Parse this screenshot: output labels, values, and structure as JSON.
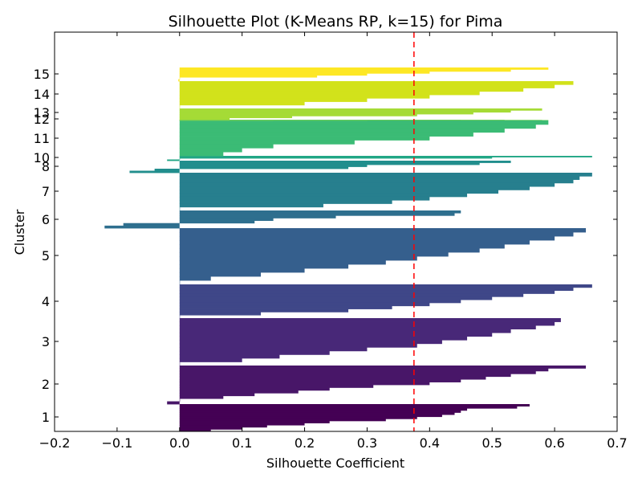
{
  "chart_data": {
    "type": "bar",
    "orientation": "horizontal",
    "title": "Silhouette Plot (K-Means RP, k=15) for Pima",
    "xlabel": "Silhouette Coefficient",
    "ylabel": "Cluster",
    "xlim": [
      -0.2,
      0.7
    ],
    "x_ticks": [
      "−0.2",
      "−0.1",
      "0.0",
      "0.1",
      "0.2",
      "0.3",
      "0.4",
      "0.5",
      "0.6",
      "0.7"
    ],
    "y_tick_labels": [
      "1",
      "2",
      "3",
      "4",
      "5",
      "6",
      "7",
      "8",
      "10",
      "11",
      "12",
      "13",
      "14",
      "15"
    ],
    "average_silhouette": 0.375,
    "average_line_color": "#ff0000",
    "grid": false,
    "clusters": [
      {
        "label": "1",
        "color": "#440154",
        "values": [
          0.56,
          0.54,
          0.46,
          0.45,
          0.44,
          0.42,
          0.38,
          0.33,
          0.24,
          0.2,
          0.14,
          0.1,
          0.05
        ]
      },
      {
        "label": "2",
        "color": "#481668",
        "values": [
          0.65,
          0.59,
          0.57,
          0.53,
          0.49,
          0.45,
          0.4,
          0.31,
          0.24,
          0.19,
          0.12,
          0.07,
          0.0,
          -0.02
        ]
      },
      {
        "label": "3",
        "color": "#482878",
        "values": [
          0.61,
          0.6,
          0.57,
          0.53,
          0.5,
          0.46,
          0.42,
          0.38,
          0.3,
          0.24,
          0.16,
          0.1,
          0.0
        ]
      },
      {
        "label": "4",
        "color": "#3f4788",
        "values": [
          0.66,
          0.63,
          0.6,
          0.55,
          0.5,
          0.45,
          0.4,
          0.34,
          0.27,
          0.13,
          0.0
        ]
      },
      {
        "label": "5",
        "color": "#355f8d",
        "values": [
          0.65,
          0.63,
          0.6,
          0.56,
          0.52,
          0.48,
          0.43,
          0.38,
          0.33,
          0.27,
          0.2,
          0.13,
          0.05,
          0.0
        ]
      },
      {
        "label": "6",
        "color": "#2e6f8e",
        "values": [
          0.45,
          0.44,
          0.25,
          0.15,
          0.12,
          -0.09,
          -0.12
        ]
      },
      {
        "label": "7",
        "color": "#277f8e",
        "values": [
          0.66,
          0.64,
          0.63,
          0.6,
          0.56,
          0.51,
          0.46,
          0.4,
          0.34,
          0.23,
          0.0
        ]
      },
      {
        "label": "8",
        "color": "#218e8d",
        "values": [
          0.53,
          0.48,
          0.3,
          0.27,
          -0.04,
          -0.08
        ]
      },
      {
        "label": "10",
        "color": "#21a685",
        "values": [
          0.66,
          0.5,
          0.0,
          -0.02
        ]
      },
      {
        "label": "11",
        "color": "#3bbb75",
        "values": [
          0.59,
          0.57,
          0.52,
          0.47,
          0.4,
          0.28,
          0.15,
          0.1,
          0.07
        ]
      },
      {
        "label": "12",
        "color": "#69cd5b",
        "values": [
          0.59,
          0.58,
          0.52,
          0.45,
          0.3,
          0.15
        ]
      },
      {
        "label": "13",
        "color": "#a5db36",
        "values": [
          0.58,
          0.53,
          0.47,
          0.38,
          0.18,
          0.08
        ]
      },
      {
        "label": "14",
        "color": "#d2e21b",
        "values": [
          0.63,
          0.6,
          0.55,
          0.48,
          0.4,
          0.3,
          0.2,
          0.0
        ]
      },
      {
        "label": "15",
        "color": "#fde725",
        "values": [
          0.59,
          0.53,
          0.4,
          0.3,
          0.22,
          0.0,
          -0.002
        ]
      }
    ]
  }
}
